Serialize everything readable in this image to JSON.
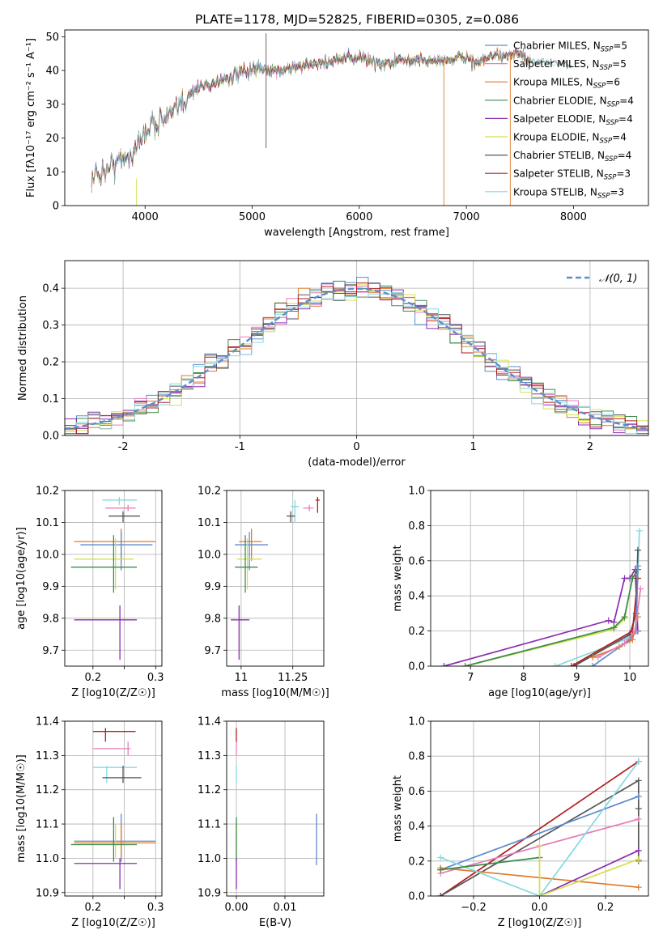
{
  "figure": {
    "title": "PLATE=1178, MJD=52825, FIBERID=0305, z=0.086"
  },
  "chart_data": [
    {
      "type": "line",
      "xlabel": "wavelength [Angstrom, rest frame]",
      "ylabel": "Flux [fλ10⁻¹⁷ erg cm⁻² s⁻¹ A⁻¹]",
      "xlim": [
        3250,
        8700
      ],
      "ylim": [
        0,
        52
      ],
      "xticks": [
        4000,
        5000,
        6000,
        7000,
        8000
      ],
      "yticks": [
        0,
        10,
        20,
        30,
        40,
        50
      ],
      "legend_position": "top-right",
      "series": [
        {
          "name": "Chabrier MILES, N_SSP=5",
          "color": "#5e8ccc"
        },
        {
          "name": "Salpeter MILES, N_SSP=5",
          "color": "#e57fb8"
        },
        {
          "name": "Kroupa MILES, N_SSP=6",
          "color": "#e07a2b"
        },
        {
          "name": "Chabrier ELODIE, N_SSP=4",
          "color": "#3d8a4c"
        },
        {
          "name": "Salpeter ELODIE, N_SSP=4",
          "color": "#8b2db0"
        },
        {
          "name": "Kroupa ELODIE, N_SSP=4",
          "color": "#d4e04a"
        },
        {
          "name": "Chabrier STELIB, N_SSP=4",
          "color": "#555555"
        },
        {
          "name": "Salpeter STELIB, N_SSP=3",
          "color": "#b31e1e"
        },
        {
          "name": "Kroupa STELIB, N_SSP=3",
          "color": "#85d8e0"
        }
      ],
      "continuum": {
        "x": [
          3500,
          3700,
          3900,
          4000,
          4100,
          4200,
          4300,
          4400,
          4500,
          4600,
          4800,
          5000,
          5200,
          5400,
          5600,
          5800,
          6000,
          6200,
          6400,
          6600,
          6800,
          7000,
          7100,
          7200,
          7300,
          7400,
          7500,
          7600
        ],
        "y": [
          8,
          12,
          16,
          22,
          25,
          26,
          28,
          33,
          35,
          36,
          38,
          40,
          40,
          41,
          42,
          43,
          44,
          42,
          43,
          43,
          43,
          44,
          42,
          44,
          44,
          45,
          45,
          42
        ]
      },
      "spikes": [
        {
          "x": 5130,
          "ymin": 17,
          "ymax": 51,
          "color": "#555555"
        },
        {
          "x": 6790,
          "ymin": 0,
          "ymax": 44,
          "color": "#e07a2b"
        },
        {
          "x": 7410,
          "ymin": 0,
          "ymax": 45,
          "color": "#e07a2b"
        },
        {
          "x": 3920,
          "ymin": 0,
          "ymax": 8,
          "color": "#d4e04a"
        }
      ]
    },
    {
      "type": "line",
      "xlabel": "(data-model)/error",
      "ylabel": "Normed distribution",
      "xlim": [
        -2.5,
        2.5
      ],
      "ylim": [
        0,
        0.475
      ],
      "xticks": [
        -2,
        -1,
        0,
        1,
        2
      ],
      "yticks": [
        0.0,
        0.1,
        0.2,
        0.3,
        0.4
      ],
      "legend_position": "top-right",
      "reference_label": "N(0,1)",
      "reference_color": "#5e8ccc"
    },
    {
      "type": "scatter",
      "xlabel": "Z [log10(Z/Z☉)]",
      "ylabel": "age [log10(age/yr)]",
      "xlim": [
        0.155,
        0.31
      ],
      "ylim": [
        9.65,
        10.2
      ],
      "xticks": [
        0.2,
        0.25,
        0.3
      ],
      "xticklabels": [
        "0.2",
        "",
        "0.3"
      ],
      "yticks": [
        9.7,
        9.8,
        9.9,
        10.0,
        10.1,
        10.2
      ],
      "points": [
        {
          "x": 0.242,
          "y": 10.17,
          "xerr": [
            0.215,
            0.27
          ],
          "yerr": [
            10.155,
            10.18
          ],
          "color": "#85d8e0"
        },
        {
          "x": 0.256,
          "y": 10.145,
          "xerr": [
            0.22,
            0.268
          ],
          "yerr": [
            10.135,
            10.155
          ],
          "color": "#e57fb8"
        },
        {
          "x": 0.248,
          "y": 10.12,
          "xerr": [
            0.225,
            0.275
          ],
          "yerr": [
            10.1,
            10.135
          ],
          "color": "#555555"
        },
        {
          "x": 0.245,
          "y": 10.04,
          "xerr": [
            0.17,
            0.3
          ],
          "yerr": [
            9.98,
            10.08
          ],
          "color": "#e07a2b"
        },
        {
          "x": 0.245,
          "y": 10.03,
          "xerr": [
            0.18,
            0.295
          ],
          "yerr": [
            9.95,
            10.07
          ],
          "color": "#5e8ccc"
        },
        {
          "x": 0.236,
          "y": 9.985,
          "xerr": [
            0.17,
            0.265
          ],
          "yerr": [
            9.89,
            10.05
          ],
          "color": "#d4e04a"
        },
        {
          "x": 0.233,
          "y": 9.96,
          "xerr": [
            0.165,
            0.27
          ],
          "yerr": [
            9.88,
            10.06
          ],
          "color": "#3d8a4c"
        },
        {
          "x": 0.243,
          "y": 9.795,
          "xerr": [
            0.17,
            0.27
          ],
          "yerr": [
            9.67,
            9.84
          ],
          "color": "#8b2db0"
        }
      ]
    },
    {
      "type": "scatter",
      "xlabel": "mass [log10(M/M☉)]",
      "ylabel": "",
      "xlim": [
        10.93,
        11.4
      ],
      "ylim": [
        9.65,
        10.2
      ],
      "xticks": [
        11.0,
        11.25
      ],
      "yticks": [
        9.7,
        9.8,
        9.9,
        10.0,
        10.1,
        10.2
      ],
      "points": [
        {
          "x": 11.37,
          "y": 10.17,
          "xerr": [
            11.36,
            11.38
          ],
          "yerr": [
            10.13,
            10.18
          ],
          "color": "#b31e1e"
        },
        {
          "x": 11.33,
          "y": 10.145,
          "xerr": [
            11.3,
            11.35
          ],
          "yerr": [
            10.135,
            10.155
          ],
          "color": "#e57fb8"
        },
        {
          "x": 11.26,
          "y": 10.15,
          "xerr": [
            11.24,
            11.28
          ],
          "yerr": [
            10.1,
            10.17
          ],
          "color": "#85d8e0"
        },
        {
          "x": 11.24,
          "y": 10.12,
          "xerr": [
            11.22,
            11.26
          ],
          "yerr": [
            10.1,
            10.135
          ],
          "color": "#555555"
        },
        {
          "x": 11.05,
          "y": 10.04,
          "xerr": [
            10.99,
            11.1
          ],
          "yerr": [
            9.98,
            10.08
          ],
          "color": "#e07a2b"
        },
        {
          "x": 11.04,
          "y": 10.03,
          "xerr": [
            10.97,
            11.13
          ],
          "yerr": [
            9.95,
            10.07
          ],
          "color": "#5e8ccc"
        },
        {
          "x": 11.03,
          "y": 9.985,
          "xerr": [
            10.98,
            11.1
          ],
          "yerr": [
            9.89,
            10.05
          ],
          "color": "#d4e04a"
        },
        {
          "x": 11.02,
          "y": 9.96,
          "xerr": [
            10.97,
            11.08
          ],
          "yerr": [
            9.88,
            10.06
          ],
          "color": "#3d8a4c"
        },
        {
          "x": 10.99,
          "y": 9.795,
          "xerr": [
            10.95,
            11.04
          ],
          "yerr": [
            9.67,
            9.84
          ],
          "color": "#8b2db0"
        }
      ]
    },
    {
      "type": "line",
      "xlabel": "age [log10(age/yr)]",
      "ylabel": "mass weight",
      "xlim": [
        6.25,
        10.35
      ],
      "ylim": [
        0,
        1.0
      ],
      "xticks": [
        7,
        8,
        9,
        10
      ],
      "yticks": [
        0.0,
        0.2,
        0.4,
        0.6,
        0.8,
        1.0
      ],
      "series": [
        {
          "color": "#8b2db0",
          "x": [
            6.5,
            9.6,
            9.7,
            9.9,
            10.0,
            10.1,
            10.15
          ],
          "y": [
            0.0,
            0.26,
            0.25,
            0.5,
            0.5,
            0.55,
            0.2
          ]
        },
        {
          "color": "#d4e04a",
          "x": [
            6.9,
            9.7,
            9.9,
            10.05,
            10.15
          ],
          "y": [
            0.0,
            0.21,
            0.27,
            0.5,
            0.55
          ]
        },
        {
          "color": "#3d8a4c",
          "x": [
            6.9,
            9.7,
            9.9,
            10.05,
            10.15
          ],
          "y": [
            0.0,
            0.22,
            0.28,
            0.5,
            0.55
          ]
        },
        {
          "color": "#85d8e0",
          "x": [
            8.6,
            9.9,
            10.1,
            10.15,
            10.18
          ],
          "y": [
            0.0,
            0.15,
            0.2,
            0.5,
            0.77
          ]
        },
        {
          "color": "#555555",
          "x": [
            8.95,
            10.0,
            10.12,
            10.15
          ],
          "y": [
            0.0,
            0.18,
            0.3,
            0.66
          ]
        },
        {
          "color": "#b31e1e",
          "x": [
            8.9,
            10.05,
            10.15
          ],
          "y": [
            0.0,
            0.2,
            0.5
          ]
        },
        {
          "color": "#5e8ccc",
          "x": [
            9.3,
            10.0,
            10.12,
            10.15
          ],
          "y": [
            0.0,
            0.15,
            0.2,
            0.57
          ]
        },
        {
          "color": "#e07a2b",
          "x": [
            9.3,
            9.8,
            10.05,
            10.15
          ],
          "y": [
            0.05,
            0.11,
            0.15,
            0.28
          ]
        },
        {
          "color": "#e57fb8",
          "x": [
            9.4,
            9.9,
            10.1,
            10.2
          ],
          "y": [
            0.05,
            0.13,
            0.2,
            0.44
          ]
        }
      ]
    },
    {
      "type": "scatter",
      "xlabel": "Z [log10(Z/Z☉)]",
      "ylabel": "mass [log10(M/M☉)]",
      "xlim": [
        0.155,
        0.31
      ],
      "ylim": [
        10.89,
        11.4
      ],
      "xticks": [
        0.2,
        0.25,
        0.3
      ],
      "xticklabels": [
        "0.2",
        "",
        "0.3"
      ],
      "yticks": [
        10.9,
        11.0,
        11.1,
        11.2,
        11.3,
        11.4
      ],
      "points": [
        {
          "x": 0.22,
          "y": 11.37,
          "xerr": [
            0.2,
            0.268
          ],
          "yerr": [
            11.34,
            11.38
          ],
          "color": "#b31e1e"
        },
        {
          "x": 0.256,
          "y": 11.32,
          "xerr": [
            0.2,
            0.26
          ],
          "yerr": [
            11.3,
            11.34
          ],
          "color": "#e57fb8"
        },
        {
          "x": 0.222,
          "y": 11.265,
          "xerr": [
            0.2,
            0.27
          ],
          "yerr": [
            11.22,
            11.27
          ],
          "color": "#85d8e0"
        },
        {
          "x": 0.248,
          "y": 11.235,
          "xerr": [
            0.215,
            0.277
          ],
          "yerr": [
            11.22,
            11.27
          ],
          "color": "#555555"
        },
        {
          "x": 0.245,
          "y": 11.05,
          "xerr": [
            0.17,
            0.3
          ],
          "yerr": [
            10.99,
            11.13
          ],
          "color": "#5e8ccc"
        },
        {
          "x": 0.245,
          "y": 11.045,
          "xerr": [
            0.17,
            0.3
          ],
          "yerr": [
            11.0,
            11.1
          ],
          "color": "#e07a2b"
        },
        {
          "x": 0.236,
          "y": 11.04,
          "xerr": [
            0.165,
            0.27
          ],
          "yerr": [
            11.0,
            11.1
          ],
          "color": "#d4e04a"
        },
        {
          "x": 0.233,
          "y": 11.04,
          "xerr": [
            0.165,
            0.27
          ],
          "yerr": [
            10.99,
            11.12
          ],
          "color": "#3d8a4c"
        },
        {
          "x": 0.243,
          "y": 10.985,
          "xerr": [
            0.17,
            0.27
          ],
          "yerr": [
            10.91,
            11.0
          ],
          "color": "#8b2db0"
        }
      ]
    },
    {
      "type": "scatter",
      "xlabel": "E(B-V)",
      "ylabel": "",
      "xlim": [
        -0.002,
        0.018
      ],
      "ylim": [
        10.89,
        11.4
      ],
      "xticks": [
        0.0,
        0.01
      ],
      "xticklabels": [
        "0.00",
        "0.01"
      ],
      "yticks": [
        10.9,
        11.0,
        11.1,
        11.2,
        11.3,
        11.4
      ],
      "points": [
        {
          "x": 0.0,
          "y": 11.37,
          "yerr": [
            11.34,
            11.38
          ],
          "color": "#b31e1e"
        },
        {
          "x": 0.0,
          "y": 11.32,
          "yerr": [
            11.3,
            11.34
          ],
          "color": "#e57fb8"
        },
        {
          "x": 0.0,
          "y": 11.24,
          "yerr": [
            11.22,
            11.27
          ],
          "color": "#85d8e0"
        },
        {
          "x": 0.0,
          "y": 11.04,
          "yerr": [
            11.0,
            11.1
          ],
          "color": "#d4e04a"
        },
        {
          "x": 0.0,
          "y": 11.06,
          "yerr": [
            10.99,
            11.12
          ],
          "color": "#3d8a4c"
        },
        {
          "x": 0.0,
          "y": 10.96,
          "yerr": [
            10.91,
            11.0
          ],
          "color": "#8b2db0"
        },
        {
          "x": 0.0165,
          "y": 11.06,
          "yerr": [
            10.98,
            11.13
          ],
          "color": "#5e8ccc"
        }
      ]
    },
    {
      "type": "line",
      "xlabel": "Z [log10(Z/Z☉)]",
      "ylabel": "mass weight",
      "xlim": [
        -0.33,
        0.33
      ],
      "ylim": [
        0,
        1.0
      ],
      "xticks": [
        -0.2,
        0.0,
        0.2
      ],
      "xticklabels": [
        "−0.2",
        "0.0",
        "0.2"
      ],
      "yticks": [
        0.0,
        0.2,
        0.4,
        0.6,
        0.8,
        1.0
      ],
      "series": [
        {
          "color": "#b31e1e",
          "x": [
            -0.3,
            0.3
          ],
          "y": [
            0.0,
            0.77
          ]
        },
        {
          "color": "#555555",
          "x": [
            -0.3,
            0.3,
            0.3,
            0.3
          ],
          "y": [
            0.0,
            0.66,
            0.5,
            0.2
          ]
        },
        {
          "color": "#5e8ccc",
          "x": [
            -0.3,
            0.3
          ],
          "y": [
            0.15,
            0.57
          ]
        },
        {
          "color": "#e57fb8",
          "x": [
            -0.3,
            0.3
          ],
          "y": [
            0.13,
            0.44
          ]
        },
        {
          "color": "#e07a2b",
          "x": [
            -0.3,
            0.3
          ],
          "y": [
            0.16,
            0.05
          ]
        },
        {
          "color": "#85d8e0",
          "x": [
            -0.3,
            0.0,
            0.3
          ],
          "y": [
            0.22,
            0.0,
            0.77
          ]
        },
        {
          "color": "#3d8a4c",
          "x": [
            -0.3,
            0.0
          ],
          "y": [
            0.15,
            0.22
          ]
        },
        {
          "color": "#8b2db0",
          "x": [
            0.0,
            0.3
          ],
          "y": [
            0.0,
            0.26
          ]
        },
        {
          "color": "#d4e04a",
          "x": [
            0.0,
            0.0,
            0.3
          ],
          "y": [
            0.29,
            0.0,
            0.21
          ]
        }
      ]
    }
  ]
}
